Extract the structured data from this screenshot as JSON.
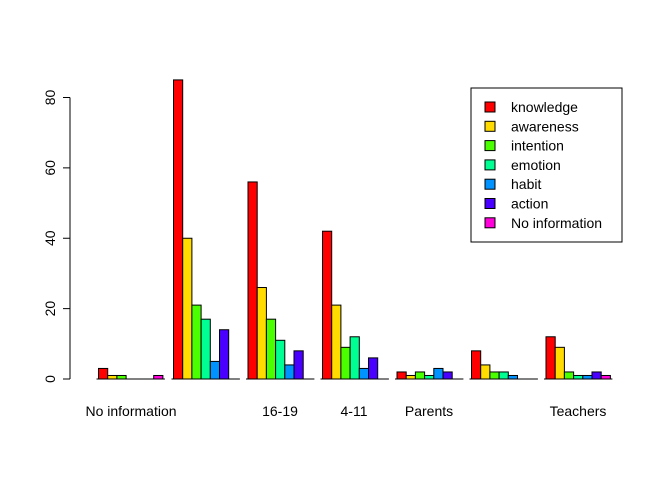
{
  "chart_data": {
    "type": "bar",
    "title": "",
    "xlabel": "",
    "ylabel": "",
    "ylim": [
      0,
      85
    ],
    "y_ticks": [
      0,
      20,
      40,
      60,
      80
    ],
    "grid": false,
    "legend_position": "top-right",
    "categories": [
      "No information",
      "",
      "16-19",
      "4-11",
      "Parents",
      "",
      "Teachers"
    ],
    "series": [
      {
        "name": "knowledge",
        "color": "#FF0000",
        "values": [
          3,
          85,
          56,
          42,
          2,
          8,
          12
        ]
      },
      {
        "name": "awareness",
        "color": "#FFDB00",
        "values": [
          1,
          40,
          26,
          21,
          1,
          4,
          9
        ]
      },
      {
        "name": "intention",
        "color": "#49FF00",
        "values": [
          1,
          21,
          17,
          9,
          2,
          2,
          2
        ]
      },
      {
        "name": "emotion",
        "color": "#00FF92",
        "values": [
          0,
          17,
          11,
          12,
          1,
          2,
          1
        ]
      },
      {
        "name": "habit",
        "color": "#0092FF",
        "values": [
          0,
          5,
          4,
          3,
          3,
          1,
          1
        ]
      },
      {
        "name": "action",
        "color": "#4900FF",
        "values": [
          0,
          14,
          8,
          6,
          2,
          0,
          2
        ]
      },
      {
        "name": "No information",
        "color": "#FF00DB",
        "values": [
          1,
          0,
          0,
          0,
          0,
          0,
          1
        ]
      }
    ]
  }
}
